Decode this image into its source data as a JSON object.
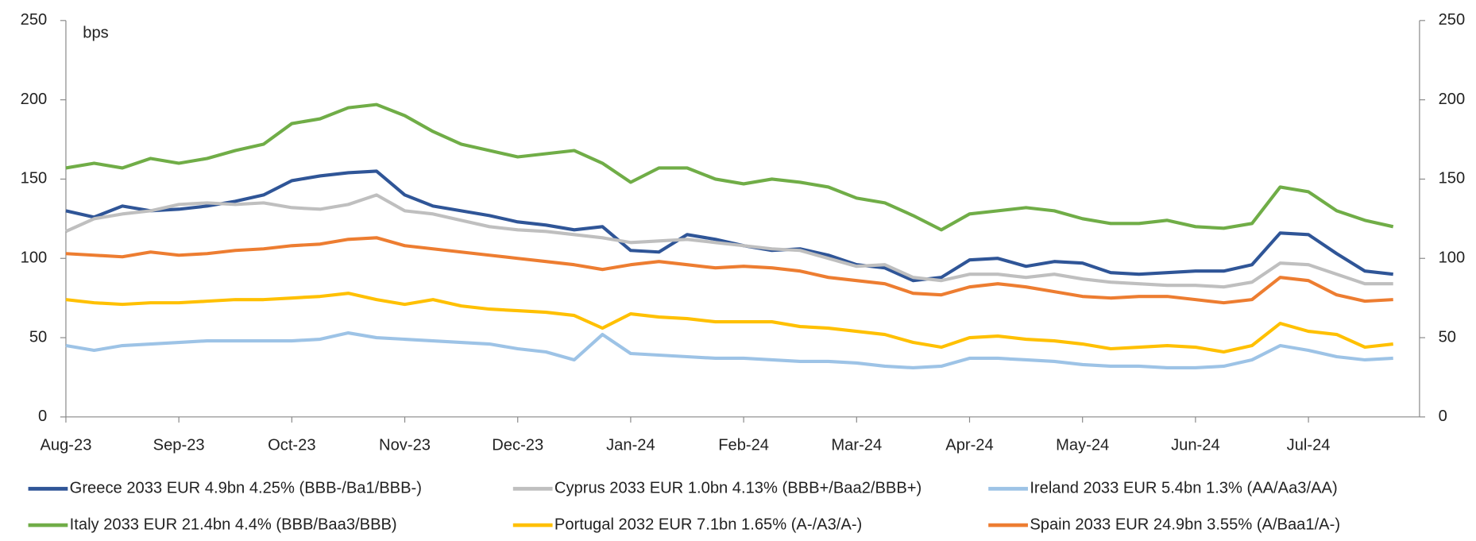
{
  "chart_data": {
    "type": "line",
    "y_label": "bps",
    "categories": [
      "Aug-23",
      null,
      null,
      null,
      "Sep-23",
      null,
      null,
      null,
      "Oct-23",
      null,
      null,
      null,
      "Nov-23",
      null,
      null,
      null,
      "Dec-23",
      null,
      null,
      null,
      "Jan-24",
      null,
      null,
      null,
      "Feb-24",
      null,
      null,
      null,
      "Mar-24",
      null,
      null,
      null,
      "Apr-24",
      null,
      null,
      null,
      "May-24",
      null,
      null,
      null,
      "Jun-24",
      null,
      null,
      null,
      "Jul-24",
      null,
      null,
      null
    ],
    "series": [
      {
        "name": "Greece 2033 EUR 4.9bn 4.25%  (BBB-/Ba1/BBB-)",
        "color": "#2f5597",
        "values": [
          130,
          126,
          133,
          130,
          131,
          133,
          136,
          140,
          149,
          152,
          154,
          155,
          140,
          133,
          130,
          127,
          123,
          121,
          118,
          120,
          105,
          104,
          115,
          112,
          108,
          105,
          106,
          102,
          96,
          94,
          86,
          88,
          99,
          100,
          95,
          98,
          97,
          91,
          90,
          91,
          92,
          92,
          96,
          116,
          115,
          103,
          92,
          90
        ]
      },
      {
        "name": "Cyprus 2033 EUR 1.0bn 4.13% (BBB+/Baa2/BBB+)",
        "color": "#bfbfbf",
        "values": [
          117,
          125,
          128,
          130,
          134,
          135,
          134,
          135,
          132,
          131,
          134,
          140,
          130,
          128,
          124,
          120,
          118,
          117,
          115,
          113,
          110,
          111,
          112,
          110,
          108,
          106,
          105,
          100,
          95,
          96,
          88,
          86,
          90,
          90,
          88,
          90,
          87,
          85,
          84,
          83,
          83,
          82,
          85,
          97,
          96,
          90,
          84,
          84
        ]
      },
      {
        "name": "Ireland 2033 EUR 5.4bn 1.3% (AA/Aa3/AA)",
        "color": "#9dc3e6",
        "values": [
          45,
          42,
          45,
          46,
          47,
          48,
          48,
          48,
          48,
          49,
          53,
          50,
          49,
          48,
          47,
          46,
          43,
          41,
          36,
          52,
          40,
          39,
          38,
          37,
          37,
          36,
          35,
          35,
          34,
          32,
          31,
          32,
          37,
          37,
          36,
          35,
          33,
          32,
          32,
          31,
          31,
          32,
          36,
          45,
          42,
          38,
          36,
          37
        ]
      },
      {
        "name": "Italy 2033 EUR 21.4bn 4.4% (BBB/Baa3/BBB)",
        "color": "#70ad47",
        "values": [
          157,
          160,
          157,
          163,
          160,
          163,
          168,
          172,
          185,
          188,
          195,
          197,
          190,
          180,
          172,
          168,
          164,
          166,
          168,
          160,
          148,
          157,
          157,
          150,
          147,
          150,
          148,
          145,
          138,
          135,
          127,
          118,
          128,
          130,
          132,
          130,
          125,
          122,
          122,
          124,
          120,
          119,
          122,
          145,
          142,
          130,
          124,
          120
        ]
      },
      {
        "name": "Portugal 2032 EUR 7.1bn 1.65% (A-/A3/A-)",
        "color": "#ffc000",
        "values": [
          74,
          72,
          71,
          72,
          72,
          73,
          74,
          74,
          75,
          76,
          78,
          74,
          71,
          74,
          70,
          68,
          67,
          66,
          64,
          56,
          65,
          63,
          62,
          60,
          60,
          60,
          57,
          56,
          54,
          52,
          47,
          44,
          50,
          51,
          49,
          48,
          46,
          43,
          44,
          45,
          44,
          41,
          45,
          59,
          54,
          52,
          44,
          46
        ]
      },
      {
        "name": "Spain 2033 EUR 24.9bn 3.55% (A/Baa1/A-)",
        "color": "#ed7d31",
        "values": [
          103,
          102,
          101,
          104,
          102,
          103,
          105,
          106,
          108,
          109,
          112,
          113,
          108,
          106,
          104,
          102,
          100,
          98,
          96,
          93,
          96,
          98,
          96,
          94,
          95,
          94,
          92,
          88,
          86,
          84,
          78,
          77,
          82,
          84,
          82,
          79,
          76,
          75,
          76,
          76,
          74,
          72,
          74,
          88,
          86,
          77,
          73,
          74
        ]
      }
    ],
    "ylim": [
      0,
      250
    ],
    "yticks": [
      0,
      50,
      100,
      150,
      200,
      250
    ],
    "y2lim": [
      0,
      250
    ],
    "y2ticks": [
      0,
      50,
      100,
      150,
      200,
      250
    ],
    "legend": "bottom"
  }
}
